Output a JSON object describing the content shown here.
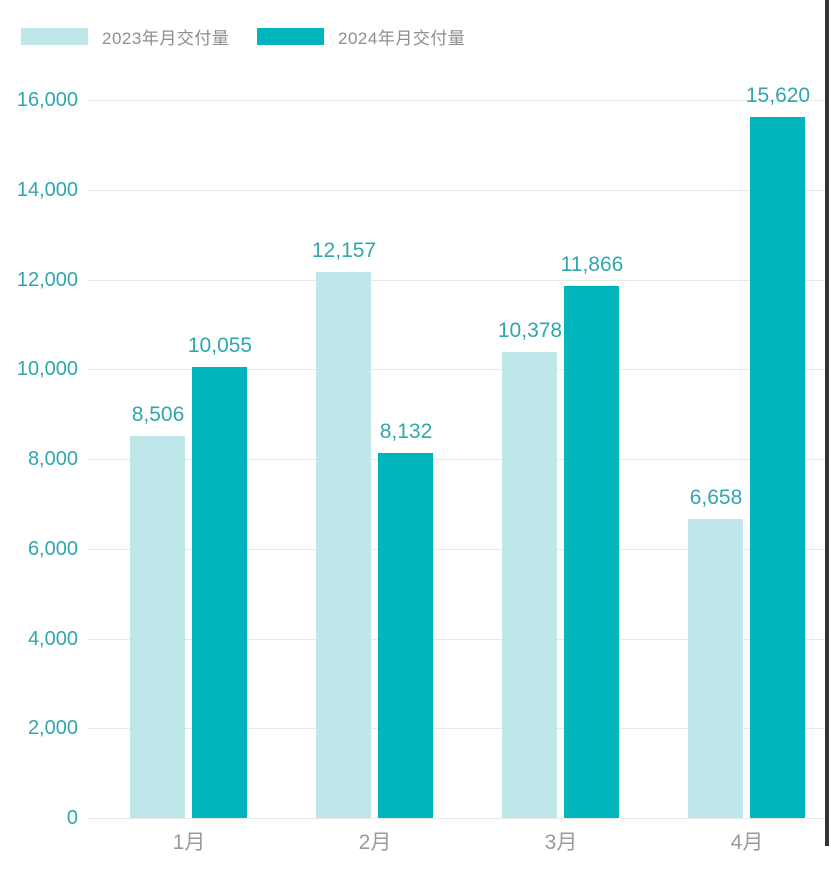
{
  "legend": {
    "items": [
      {
        "label": "2023年月交付量",
        "color": "#bfe7e9"
      },
      {
        "label": "2024年月交付量",
        "color": "#00b5bc"
      }
    ]
  },
  "chart_data": {
    "type": "bar",
    "title": "",
    "xlabel": "",
    "ylabel": "",
    "categories": [
      "1月",
      "2月",
      "3月",
      "4月"
    ],
    "series": [
      {
        "name": "2023年月交付量",
        "color": "#bfe7e9",
        "values": [
          8506,
          12157,
          10378,
          6658
        ]
      },
      {
        "name": "2024年月交付量",
        "color": "#00b5bc",
        "values": [
          10055,
          8132,
          11866,
          15620
        ]
      }
    ],
    "data_labels": [
      [
        "8,506",
        "12,157",
        "10,378",
        "6,658"
      ],
      [
        "10,055",
        "8,132",
        "11,866",
        "15,620"
      ]
    ],
    "ylim": [
      0,
      16000
    ],
    "ytick_step": 2000,
    "yticks": [
      "0",
      "2,000",
      "4,000",
      "6,000",
      "8,000",
      "10,000",
      "12,000",
      "14,000",
      "16,000"
    ],
    "grid": true,
    "legend_position": "top-left",
    "colors": {
      "tick_label": "#2fa7ad",
      "value_label": "#2fa7ad",
      "xtick_label": "#9b9b9b",
      "gridline": "#e8e8e8",
      "legend_text": "#8e8e8e",
      "background": "#ffffff",
      "right_edge_line": "#333333"
    }
  }
}
